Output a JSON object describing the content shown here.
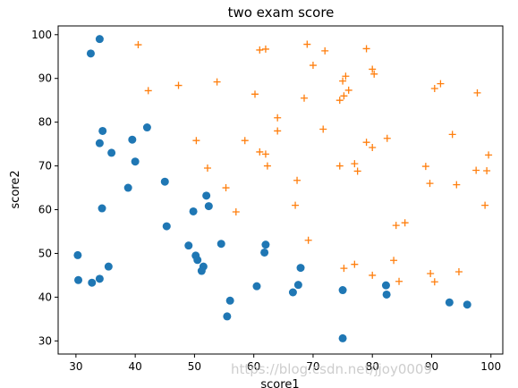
{
  "chart_data": {
    "type": "scatter",
    "title": "two exam score",
    "xlabel": "score1",
    "ylabel": "score2",
    "xlim": [
      27,
      102
    ],
    "ylim": [
      27,
      102
    ],
    "xticks": [
      30,
      40,
      50,
      60,
      70,
      80,
      90,
      100
    ],
    "yticks": [
      30,
      40,
      50,
      60,
      70,
      80,
      90,
      100
    ],
    "grid": false,
    "legend": "none",
    "series": [
      {
        "marker": "circle",
        "color": "#1f77b4",
        "points": [
          [
            34,
            99
          ],
          [
            32.5,
            95.7
          ],
          [
            34.5,
            78
          ],
          [
            42,
            78.8
          ],
          [
            34,
            75.2
          ],
          [
            39.5,
            76
          ],
          [
            36,
            73
          ],
          [
            40,
            71
          ],
          [
            38.8,
            65
          ],
          [
            45,
            66.4
          ],
          [
            52,
            63.2
          ],
          [
            52.4,
            60.8
          ],
          [
            34.4,
            60.3
          ],
          [
            49.8,
            59.6
          ],
          [
            45.3,
            56.2
          ],
          [
            54.5,
            52.2
          ],
          [
            49,
            51.8
          ],
          [
            62,
            52
          ],
          [
            61.8,
            50.2
          ],
          [
            30.3,
            49.6
          ],
          [
            50.2,
            49.5
          ],
          [
            50.5,
            48.5
          ],
          [
            51.5,
            47
          ],
          [
            51.2,
            46
          ],
          [
            35.5,
            47
          ],
          [
            67.9,
            46.7
          ],
          [
            30.4,
            43.9
          ],
          [
            34,
            44.2
          ],
          [
            32.7,
            43.3
          ],
          [
            56,
            39.2
          ],
          [
            60.5,
            42.5
          ],
          [
            67.5,
            42.8
          ],
          [
            66.6,
            41.1
          ],
          [
            75,
            41.6
          ],
          [
            82.3,
            42.7
          ],
          [
            82.4,
            40.6
          ],
          [
            93,
            38.8
          ],
          [
            96,
            38.3
          ],
          [
            55.5,
            35.6
          ],
          [
            75,
            30.6
          ]
        ]
      },
      {
        "marker": "plus",
        "color": "#ff7f0e",
        "points": [
          [
            40.5,
            97.7
          ],
          [
            61,
            96.5
          ],
          [
            62,
            96.7
          ],
          [
            69,
            97.8
          ],
          [
            72,
            96.3
          ],
          [
            79,
            96.8
          ],
          [
            70,
            93
          ],
          [
            80,
            92.1
          ],
          [
            80.3,
            91
          ],
          [
            75.5,
            90.5
          ],
          [
            75,
            89.4
          ],
          [
            91.5,
            88.8
          ],
          [
            90.5,
            87.7
          ],
          [
            42.2,
            87.2
          ],
          [
            47.3,
            88.4
          ],
          [
            53.8,
            89.2
          ],
          [
            60.2,
            86.4
          ],
          [
            68.5,
            85.5
          ],
          [
            76,
            87.3
          ],
          [
            75.2,
            86
          ],
          [
            74.5,
            85
          ],
          [
            97.7,
            86.7
          ],
          [
            64,
            81
          ],
          [
            64,
            78
          ],
          [
            71.7,
            78.4
          ],
          [
            93.5,
            77.2
          ],
          [
            58.5,
            75.8
          ],
          [
            50.3,
            75.8
          ],
          [
            61,
            73.2
          ],
          [
            62,
            72.7
          ],
          [
            79,
            75.4
          ],
          [
            80,
            74.2
          ],
          [
            82.5,
            76.3
          ],
          [
            77,
            70.5
          ],
          [
            77.5,
            68.8
          ],
          [
            74.5,
            70
          ],
          [
            89,
            69.9
          ],
          [
            97.5,
            69
          ],
          [
            99.3,
            68.9
          ],
          [
            99.6,
            72.5
          ],
          [
            52.2,
            69.5
          ],
          [
            62.3,
            70
          ],
          [
            67.3,
            66.7
          ],
          [
            89.7,
            66
          ],
          [
            94.2,
            65.7
          ],
          [
            55.3,
            65
          ],
          [
            57,
            59.5
          ],
          [
            67,
            61
          ],
          [
            99,
            61
          ],
          [
            85.5,
            57
          ],
          [
            84,
            56.4
          ],
          [
            69.2,
            53
          ],
          [
            75.2,
            46.6
          ],
          [
            77,
            47.5
          ],
          [
            83.6,
            48.4
          ],
          [
            80,
            45
          ],
          [
            89.8,
            45.4
          ],
          [
            94.6,
            45.8
          ],
          [
            84.5,
            43.6
          ],
          [
            90.5,
            43.5
          ]
        ]
      }
    ]
  },
  "watermark": "https://blog.csdn.net/jjoy0009"
}
